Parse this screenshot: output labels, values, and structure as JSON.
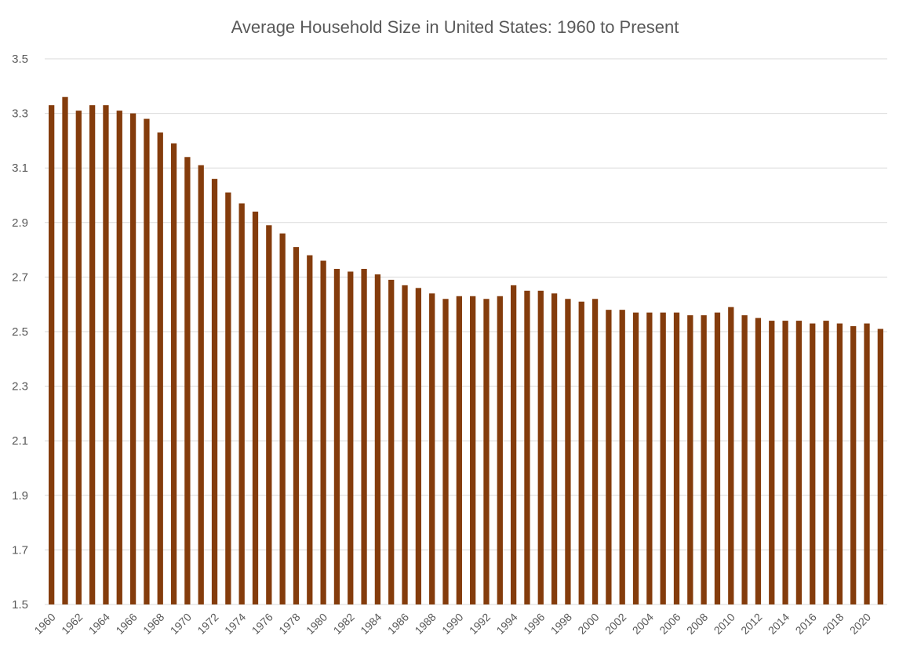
{
  "chart_data": {
    "type": "bar",
    "title": "Average Household Size in United States:  1960 to Present",
    "xlabel": "",
    "ylabel": "",
    "ylim": [
      1.5,
      3.5
    ],
    "y_ticks": [
      "3.5",
      "3.3",
      "3.1",
      "2.9",
      "2.7",
      "2.5",
      "2.3",
      "2.1",
      "1.9",
      "1.7",
      "1.5"
    ],
    "x_tick_labels": [
      "1960",
      "1962",
      "1964",
      "1966",
      "1968",
      "1970",
      "1972",
      "1974",
      "1976",
      "1978",
      "1980",
      "1982",
      "1984",
      "1986",
      "1988",
      "1990",
      "1992",
      "1994",
      "1996",
      "1998",
      "2000",
      "2002",
      "2004",
      "2006",
      "2008",
      "2010",
      "2012",
      "2014",
      "2016",
      "2018",
      "2020"
    ],
    "grid": true,
    "legend": "none",
    "bar_color": "#843c0c",
    "categories": [
      "1960",
      "1961",
      "1962",
      "1963",
      "1964",
      "1965",
      "1966",
      "1967",
      "1968",
      "1969",
      "1970",
      "1971",
      "1972",
      "1973",
      "1974",
      "1975",
      "1976",
      "1977",
      "1978",
      "1979",
      "1980",
      "1981",
      "1982",
      "1983",
      "1984",
      "1985",
      "1986",
      "1987",
      "1988",
      "1989",
      "1990",
      "1991",
      "1992",
      "1993",
      "1994",
      "1995",
      "1996",
      "1997",
      "1998",
      "1999",
      "2000",
      "2001",
      "2002",
      "2003",
      "2004",
      "2005",
      "2006",
      "2007",
      "2008",
      "2009",
      "2010",
      "2011",
      "2012",
      "2013",
      "2014",
      "2015",
      "2016",
      "2017",
      "2018",
      "2019",
      "2020",
      "2021"
    ],
    "values": [
      3.33,
      3.36,
      3.31,
      3.33,
      3.33,
      3.31,
      3.3,
      3.28,
      3.23,
      3.19,
      3.14,
      3.11,
      3.06,
      3.01,
      2.97,
      2.94,
      2.89,
      2.86,
      2.81,
      2.78,
      2.76,
      2.73,
      2.72,
      2.73,
      2.71,
      2.69,
      2.67,
      2.66,
      2.64,
      2.62,
      2.63,
      2.63,
      2.62,
      2.63,
      2.67,
      2.65,
      2.65,
      2.64,
      2.62,
      2.61,
      2.62,
      2.58,
      2.58,
      2.57,
      2.57,
      2.57,
      2.57,
      2.56,
      2.56,
      2.57,
      2.59,
      2.56,
      2.55,
      2.54,
      2.54,
      2.54,
      2.53,
      2.54,
      2.53,
      2.52,
      2.53,
      2.51
    ]
  }
}
